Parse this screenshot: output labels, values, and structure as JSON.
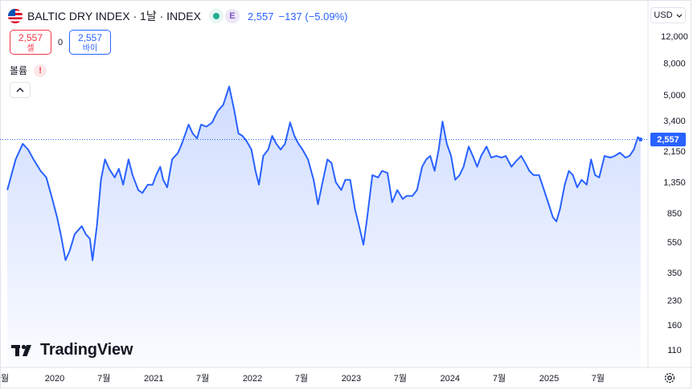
{
  "header": {
    "title": "BALTIC DRY INDEX · 1날 · INDEX",
    "e_badge": "E",
    "price": "2,557",
    "change": "−137 (−5.09%)"
  },
  "trade": {
    "sell_price": "2,557",
    "sell_label": "셀",
    "spread": "0",
    "buy_price": "2,557",
    "buy_label": "바이"
  },
  "volume": {
    "label": "볼륨",
    "warning": "!"
  },
  "currency": {
    "label": "USD"
  },
  "brand": {
    "name": "TradingView"
  },
  "last_price_tag": "2,557",
  "colors": {
    "line": "#2962ff",
    "accent_red": "#f23645",
    "grid": "#e0e3eb"
  },
  "icons": {
    "settings": "gear-icon",
    "collapse": "chevron-up-icon",
    "currency_menu": "chevron-down-icon",
    "status": "market-status-icon",
    "flag": "us-flag-icon"
  },
  "chart_data": {
    "type": "line",
    "title": "BALTIC DRY INDEX",
    "y_scale": "log",
    "y_ticks": [
      {
        "label": "12,000",
        "value": 12000
      },
      {
        "label": "8,000",
        "value": 8000
      },
      {
        "label": "5,000",
        "value": 5000
      },
      {
        "label": "3,400",
        "value": 3400
      },
      {
        "label": "2,150",
        "value": 2150
      },
      {
        "label": "1,350",
        "value": 1350
      },
      {
        "label": "850",
        "value": 850
      },
      {
        "label": "550",
        "value": 550
      },
      {
        "label": "350",
        "value": 350
      },
      {
        "label": "230",
        "value": 230
      },
      {
        "label": "160",
        "value": 160
      },
      {
        "label": "110",
        "value": 110
      }
    ],
    "x_ticks": [
      {
        "label": "월",
        "date": "2019-07"
      },
      {
        "label": "2020",
        "date": "2020-01"
      },
      {
        "label": "7월",
        "date": "2020-07"
      },
      {
        "label": "2021",
        "date": "2021-01"
      },
      {
        "label": "7월",
        "date": "2021-07"
      },
      {
        "label": "2022",
        "date": "2022-01"
      },
      {
        "label": "7월",
        "date": "2022-07"
      },
      {
        "label": "2023",
        "date": "2023-01"
      },
      {
        "label": "7월",
        "date": "2023-07"
      },
      {
        "label": "2024",
        "date": "2024-01"
      },
      {
        "label": "7월",
        "date": "2024-07"
      },
      {
        "label": "2025",
        "date": "2025-01"
      },
      {
        "label": "7월",
        "date": "2025-07"
      }
    ],
    "last_value": 2557,
    "series": [
      {
        "points": [
          [
            "2019-07-10",
            1200
          ],
          [
            "2019-08-10",
            1900
          ],
          [
            "2019-09-05",
            2400
          ],
          [
            "2019-09-25",
            2200
          ],
          [
            "2019-10-15",
            1900
          ],
          [
            "2019-11-10",
            1600
          ],
          [
            "2019-12-01",
            1450
          ],
          [
            "2019-12-20",
            1100
          ],
          [
            "2020-01-10",
            800
          ],
          [
            "2020-01-25",
            600
          ],
          [
            "2020-02-10",
            420
          ],
          [
            "2020-02-25",
            480
          ],
          [
            "2020-03-15",
            620
          ],
          [
            "2020-04-10",
            700
          ],
          [
            "2020-04-25",
            620
          ],
          [
            "2020-05-10",
            580
          ],
          [
            "2020-05-20",
            420
          ],
          [
            "2020-06-05",
            700
          ],
          [
            "2020-06-20",
            1400
          ],
          [
            "2020-07-05",
            1900
          ],
          [
            "2020-07-20",
            1650
          ],
          [
            "2020-08-10",
            1450
          ],
          [
            "2020-08-25",
            1650
          ],
          [
            "2020-09-10",
            1300
          ],
          [
            "2020-09-30",
            1900
          ],
          [
            "2020-10-15",
            1500
          ],
          [
            "2020-11-05",
            1200
          ],
          [
            "2020-11-20",
            1150
          ],
          [
            "2020-12-10",
            1300
          ],
          [
            "2020-12-28",
            1300
          ],
          [
            "2021-01-10",
            1500
          ],
          [
            "2021-01-25",
            1700
          ],
          [
            "2021-02-05",
            1400
          ],
          [
            "2021-02-20",
            1250
          ],
          [
            "2021-03-10",
            1900
          ],
          [
            "2021-04-01",
            2100
          ],
          [
            "2021-04-15",
            2400
          ],
          [
            "2021-05-10",
            3200
          ],
          [
            "2021-05-25",
            2800
          ],
          [
            "2021-06-10",
            2600
          ],
          [
            "2021-06-25",
            3200
          ],
          [
            "2021-07-15",
            3100
          ],
          [
            "2021-08-05",
            3300
          ],
          [
            "2021-08-25",
            3900
          ],
          [
            "2021-09-15",
            4300
          ],
          [
            "2021-10-07",
            5650
          ],
          [
            "2021-10-25",
            4000
          ],
          [
            "2021-11-10",
            2800
          ],
          [
            "2021-11-25",
            2700
          ],
          [
            "2021-12-10",
            2500
          ],
          [
            "2021-12-28",
            2200
          ],
          [
            "2022-01-12",
            1600
          ],
          [
            "2022-01-25",
            1300
          ],
          [
            "2022-02-10",
            2000
          ],
          [
            "2022-02-28",
            2200
          ],
          [
            "2022-03-15",
            2700
          ],
          [
            "2022-03-30",
            2400
          ],
          [
            "2022-04-15",
            2200
          ],
          [
            "2022-05-01",
            2400
          ],
          [
            "2022-05-20",
            3300
          ],
          [
            "2022-06-05",
            2700
          ],
          [
            "2022-06-20",
            2400
          ],
          [
            "2022-07-05",
            2200
          ],
          [
            "2022-07-25",
            1900
          ],
          [
            "2022-08-15",
            1400
          ],
          [
            "2022-08-31",
            970
          ],
          [
            "2022-09-15",
            1300
          ],
          [
            "2022-10-05",
            1900
          ],
          [
            "2022-10-20",
            1800
          ],
          [
            "2022-11-05",
            1350
          ],
          [
            "2022-11-25",
            1200
          ],
          [
            "2022-12-10",
            1400
          ],
          [
            "2022-12-28",
            1400
          ],
          [
            "2023-01-15",
            900
          ],
          [
            "2023-01-30",
            700
          ],
          [
            "2023-02-15",
            530
          ],
          [
            "2023-03-01",
            800
          ],
          [
            "2023-03-20",
            1500
          ],
          [
            "2023-04-10",
            1450
          ],
          [
            "2023-04-25",
            1600
          ],
          [
            "2023-05-15",
            1550
          ],
          [
            "2023-06-01",
            1000
          ],
          [
            "2023-06-20",
            1200
          ],
          [
            "2023-07-10",
            1050
          ],
          [
            "2023-07-25",
            1100
          ],
          [
            "2023-08-15",
            1100
          ],
          [
            "2023-09-01",
            1200
          ],
          [
            "2023-09-20",
            1700
          ],
          [
            "2023-10-05",
            1900
          ],
          [
            "2023-10-20",
            2000
          ],
          [
            "2023-11-05",
            1600
          ],
          [
            "2023-11-20",
            2200
          ],
          [
            "2023-12-04",
            3350
          ],
          [
            "2023-12-20",
            2400
          ],
          [
            "2024-01-05",
            2000
          ],
          [
            "2024-01-20",
            1400
          ],
          [
            "2024-02-05",
            1500
          ],
          [
            "2024-02-20",
            1700
          ],
          [
            "2024-03-10",
            2300
          ],
          [
            "2024-03-25",
            2000
          ],
          [
            "2024-04-10",
            1700
          ],
          [
            "2024-04-25",
            2000
          ],
          [
            "2024-05-15",
            2300
          ],
          [
            "2024-06-01",
            1950
          ],
          [
            "2024-06-20",
            2000
          ],
          [
            "2024-07-10",
            1950
          ],
          [
            "2024-07-25",
            2000
          ],
          [
            "2024-08-15",
            1700
          ],
          [
            "2024-09-01",
            1850
          ],
          [
            "2024-09-20",
            2000
          ],
          [
            "2024-10-05",
            1800
          ],
          [
            "2024-10-20",
            1600
          ],
          [
            "2024-11-05",
            1500
          ],
          [
            "2024-11-25",
            1500
          ],
          [
            "2024-12-10",
            1250
          ],
          [
            "2024-12-28",
            1000
          ],
          [
            "2025-01-15",
            800
          ],
          [
            "2025-01-28",
            750
          ],
          [
            "2025-02-10",
            900
          ],
          [
            "2025-02-28",
            1300
          ],
          [
            "2025-03-15",
            1600
          ],
          [
            "2025-03-30",
            1500
          ],
          [
            "2025-04-15",
            1250
          ],
          [
            "2025-05-01",
            1400
          ],
          [
            "2025-05-20",
            1300
          ],
          [
            "2025-06-05",
            1900
          ],
          [
            "2025-06-20",
            1500
          ],
          [
            "2025-07-05",
            1450
          ],
          [
            "2025-07-25",
            2000
          ],
          [
            "2025-08-15",
            1950
          ],
          [
            "2025-09-01",
            2000
          ],
          [
            "2025-09-20",
            2100
          ],
          [
            "2025-10-10",
            1950
          ],
          [
            "2025-10-25",
            2000
          ],
          [
            "2025-11-10",
            2200
          ],
          [
            "2025-11-25",
            2650
          ],
          [
            "2025-12-05",
            2557
          ]
        ]
      }
    ]
  }
}
